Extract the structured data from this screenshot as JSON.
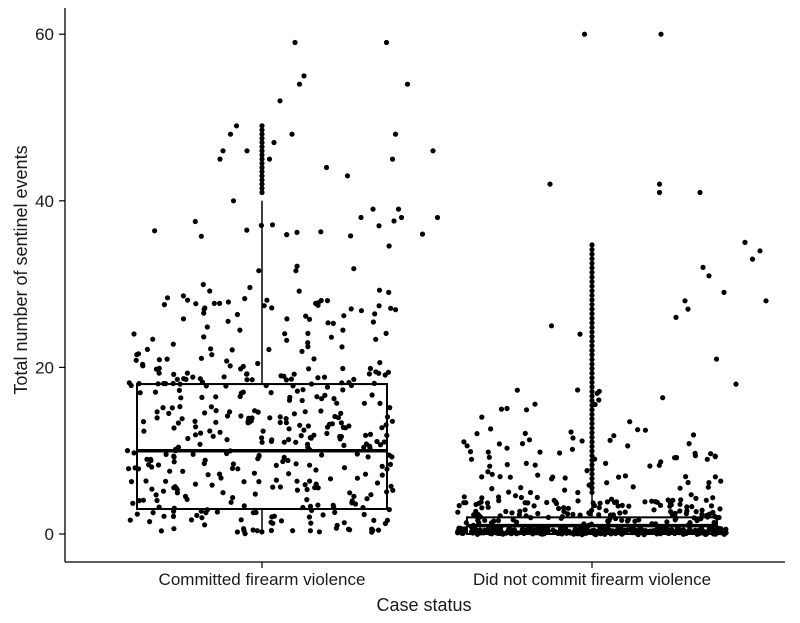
{
  "chart_data": {
    "type": "boxplot",
    "xlabel": "Case status",
    "ylabel": "Total number of sentinel events",
    "categories": [
      "Committed firearm violence",
      "Did not commit firearm violence"
    ],
    "ylim": [
      -3,
      63
    ],
    "yticks": [
      0,
      20,
      40,
      60
    ],
    "grid": false,
    "legend": "none",
    "boxes": [
      {
        "category": "Committed firearm violence",
        "q1": 3,
        "median": 10,
        "q3": 18,
        "whisker_low": 0,
        "whisker_high": 40
      },
      {
        "category": "Did not commit firearm violence",
        "q1": 0,
        "median": 1,
        "q3": 2,
        "whisker_low": 0,
        "whisker_high": 5
      }
    ],
    "highlight_points": [
      {
        "group": 0,
        "jitter": -0.28,
        "y": 45
      },
      {
        "group": 0,
        "jitter": -0.26,
        "y": 46
      },
      {
        "group": 0,
        "jitter": -0.21,
        "y": 48
      },
      {
        "group": 0,
        "jitter": -0.17,
        "y": 49
      },
      {
        "group": 0,
        "jitter": -0.19,
        "y": 40
      },
      {
        "group": 0,
        "jitter": -0.1,
        "y": 46
      },
      {
        "group": 0,
        "jitter": 0.05,
        "y": 45
      },
      {
        "group": 0,
        "jitter": 0.08,
        "y": 47
      },
      {
        "group": 0,
        "jitter": 0.12,
        "y": 52
      },
      {
        "group": 0,
        "jitter": 0.2,
        "y": 48
      },
      {
        "group": 0,
        "jitter": 0.22,
        "y": 59
      },
      {
        "group": 0,
        "jitter": 0.25,
        "y": 54
      },
      {
        "group": 0,
        "jitter": 0.28,
        "y": 55
      },
      {
        "group": 0,
        "jitter": 0.43,
        "y": 44
      },
      {
        "group": 0,
        "jitter": 0.57,
        "y": 43
      },
      {
        "group": 0,
        "jitter": 0.66,
        "y": 38
      },
      {
        "group": 0,
        "jitter": 0.74,
        "y": 39
      },
      {
        "group": 0,
        "jitter": 0.78,
        "y": 37
      },
      {
        "group": 0,
        "jitter": 0.83,
        "y": 59
      },
      {
        "group": 0,
        "jitter": 0.87,
        "y": 45
      },
      {
        "group": 0,
        "jitter": 0.89,
        "y": 48
      },
      {
        "group": 0,
        "jitter": 0.91,
        "y": 39
      },
      {
        "group": 0,
        "jitter": 0.93,
        "y": 38
      },
      {
        "group": 0,
        "jitter": 0.97,
        "y": 54
      },
      {
        "group": 0,
        "jitter": 1.07,
        "y": 36
      },
      {
        "group": 0,
        "jitter": 1.14,
        "y": 46
      },
      {
        "group": 0,
        "jitter": 1.17,
        "y": 38
      },
      {
        "group": 1,
        "jitter": -0.28,
        "y": 42
      },
      {
        "group": 1,
        "jitter": -0.27,
        "y": 25
      },
      {
        "group": 1,
        "jitter": -0.05,
        "y": 60
      },
      {
        "group": 1,
        "jitter": -0.08,
        "y": 24
      },
      {
        "group": 1,
        "jitter": 0.0,
        "y": 22
      },
      {
        "group": 1,
        "jitter": 0.46,
        "y": 60
      },
      {
        "group": 1,
        "jitter": 0.45,
        "y": 42
      },
      {
        "group": 1,
        "jitter": 0.45,
        "y": 41
      },
      {
        "group": 1,
        "jitter": 0.56,
        "y": 26
      },
      {
        "group": 1,
        "jitter": 0.62,
        "y": 28
      },
      {
        "group": 1,
        "jitter": 0.64,
        "y": 27
      },
      {
        "group": 1,
        "jitter": 0.72,
        "y": 41
      },
      {
        "group": 1,
        "jitter": 0.74,
        "y": 32
      },
      {
        "group": 1,
        "jitter": 0.78,
        "y": 31
      },
      {
        "group": 1,
        "jitter": 0.83,
        "y": 21
      },
      {
        "group": 1,
        "jitter": 0.88,
        "y": 29
      },
      {
        "group": 1,
        "jitter": 1.02,
        "y": 35
      },
      {
        "group": 1,
        "jitter": 1.07,
        "y": 33
      },
      {
        "group": 1,
        "jitter": 1.12,
        "y": 34
      },
      {
        "group": 1,
        "jitter": 1.16,
        "y": 28
      },
      {
        "group": 1,
        "jitter": 0.96,
        "y": 18
      }
    ],
    "stacked_points": [
      {
        "group": 0,
        "y_from": 41,
        "y_to": 49,
        "step": 0.5
      },
      {
        "group": 1,
        "y_from": 5,
        "y_to": 35,
        "step": 0.55
      }
    ]
  }
}
